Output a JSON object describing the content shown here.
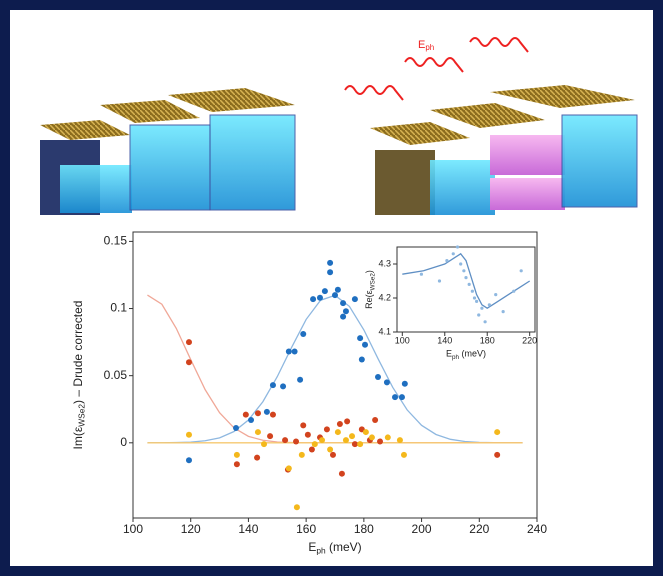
{
  "illustration": {
    "photon_label": [
      "E",
      "ph"
    ]
  },
  "chart_data": [
    {
      "type": "scatter",
      "xlim": [
        100,
        240
      ],
      "xticks": [
        100,
        120,
        140,
        160,
        180,
        200,
        220,
        240
      ],
      "ylim": [
        -0.056,
        0.157
      ],
      "yticks": [
        0,
        0.05,
        0.1,
        0.15
      ],
      "x_label": [
        "E",
        "ph",
        " (meV)"
      ],
      "y_label": [
        "Im(ε",
        "WSe2",
        ") – Drude corrected"
      ],
      "series": [
        {
          "color": "#1f6fc0",
          "x": [
            119.4,
            135.7,
            140.9,
            146.4,
            148.5,
            152,
            154,
            156,
            157.9,
            159,
            162.4,
            164.8,
            166.5,
            168.3,
            168.3,
            170,
            171,
            172.8,
            173.8,
            172.8,
            176.9,
            178.7,
            180.4,
            179.3,
            184.9,
            188,
            190.8,
            193.2,
            194.2
          ],
          "values": [
            -0.013,
            0.011,
            0.017,
            0.023,
            0.043,
            0.042,
            0.068,
            0.068,
            0.047,
            0.081,
            0.107,
            0.108,
            0.113,
            0.134,
            0.127,
            0.11,
            0.114,
            0.094,
            0.098,
            0.104,
            0.107,
            0.078,
            0.073,
            0.062,
            0.049,
            0.045,
            0.034,
            0.034,
            0.044
          ]
        },
        {
          "color": "#d2431e",
          "x": [
            119.4,
            119.4,
            136,
            139.1,
            143.3,
            147.5,
            148.5,
            152.7,
            153.7,
            156.5,
            159,
            160.6,
            162,
            164.8,
            167.2,
            169.3,
            171.7,
            174.2,
            172.4,
            176.9,
            179.3,
            182.1,
            183.9,
            185.6,
            226.2,
            143
          ],
          "values": [
            0.075,
            0.06,
            -0.016,
            0.021,
            0.022,
            0.005,
            0.021,
            0.002,
            -0.02,
            0.001,
            0.013,
            0.006,
            -0.005,
            0.004,
            0.01,
            -0.009,
            0.014,
            0.016,
            -0.023,
            -0.001,
            0.01,
            0.002,
            0.017,
            0.001,
            -0.009,
            -0.011
          ]
        },
        {
          "color": "#f4b81c",
          "x": [
            119.4,
            136,
            143.3,
            145.4,
            154,
            156.8,
            158.5,
            163,
            165.5,
            168.3,
            171,
            173.8,
            175.9,
            178.7,
            180.7,
            182.8,
            188.3,
            192.5,
            193.9,
            226.2
          ],
          "values": [
            0.006,
            -0.009,
            0.008,
            -0.001,
            -0.019,
            -0.048,
            -0.009,
            -0.001,
            0.002,
            -0.005,
            0.008,
            0.002,
            0.005,
            -0.001,
            0.008,
            0.004,
            0.004,
            0.002,
            -0.009,
            0.008
          ]
        },
        {
          "mode": "line",
          "color": "#8fb8e0",
          "x": [
            105,
            110,
            115,
            120,
            125,
            130,
            135,
            140,
            145,
            150,
            155,
            160,
            165,
            170,
            175,
            180,
            185,
            190,
            195,
            200,
            205,
            210,
            215,
            220,
            225,
            230,
            235
          ],
          "values": [
            0,
            0,
            0.0002,
            0.0005,
            0.0015,
            0.0037,
            0.0084,
            0.017,
            0.0306,
            0.0493,
            0.0712,
            0.0919,
            0.1062,
            0.1098,
            0.1016,
            0.0841,
            0.0623,
            0.0413,
            0.0245,
            0.013,
            0.0062,
            0.0026,
            0.001,
            0.0003,
            0.0001,
            0,
            0
          ]
        },
        {
          "mode": "line",
          "color": "#f0a898",
          "x": [
            105,
            110,
            115,
            120,
            125,
            130,
            135,
            140,
            145,
            150,
            155,
            160,
            235
          ],
          "values": [
            0.11,
            0.1032,
            0.0852,
            0.062,
            0.0396,
            0.0224,
            0.0111,
            0.0048,
            0.0019,
            0.0006,
            0.0002,
            0,
            0
          ]
        },
        {
          "mode": "line",
          "color": "#f6c870",
          "x": [
            105,
            235
          ],
          "values": [
            0,
            0
          ]
        }
      ]
    },
    {
      "type": "scatter",
      "xlim": [
        95,
        225
      ],
      "xticks": [
        100,
        140,
        180,
        220
      ],
      "ylim": [
        4.1,
        4.35
      ],
      "yticks": [
        4.1,
        4.2,
        4.3
      ],
      "x_label": [
        "E",
        "ph",
        " (meV)"
      ],
      "y_label": [
        "Re(ε",
        "WSe2",
        ")"
      ],
      "series": [
        {
          "color": "#8fb8e0",
          "x": [
            118,
            135,
            142,
            148,
            152,
            155,
            158,
            160,
            163,
            166,
            168,
            170,
            172,
            175,
            178,
            182,
            188,
            195,
            205,
            212
          ],
          "values": [
            4.27,
            4.25,
            4.31,
            4.33,
            4.35,
            4.3,
            4.28,
            4.26,
            4.24,
            4.22,
            4.2,
            4.19,
            4.15,
            4.17,
            4.13,
            4.18,
            4.21,
            4.16,
            4.22,
            4.28
          ]
        },
        {
          "mode": "line",
          "color": "#5f8fc4",
          "x": [
            100,
            120,
            140,
            150,
            155,
            160,
            165,
            170,
            175,
            180,
            190,
            200,
            210,
            220
          ],
          "values": [
            4.27,
            4.28,
            4.3,
            4.32,
            4.33,
            4.31,
            4.26,
            4.21,
            4.18,
            4.17,
            4.19,
            4.21,
            4.23,
            4.25
          ]
        }
      ]
    }
  ]
}
